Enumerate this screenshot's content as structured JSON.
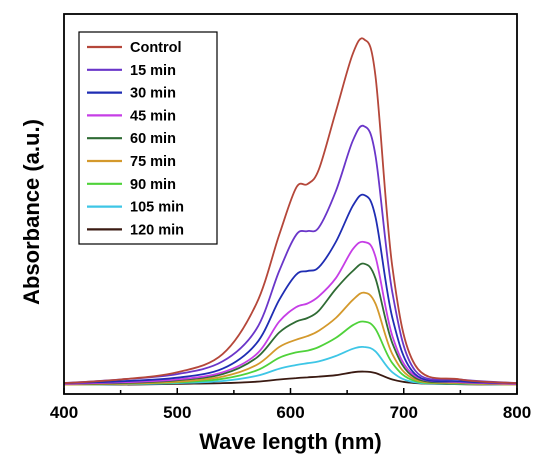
{
  "chart_data": {
    "type": "line",
    "xlabel": "Wave length (nm)",
    "ylabel": "Absorbance (a.u.)",
    "xlim": [
      400,
      800
    ],
    "ylim": [
      0,
      1.05
    ],
    "xticks": [
      400,
      500,
      600,
      700,
      800
    ],
    "show_y_tick_labels": false,
    "grid": false,
    "legend_position": "top-left",
    "x": [
      400,
      450,
      500,
      540,
      570,
      590,
      605,
      615,
      625,
      640,
      655,
      665,
      675,
      690,
      710,
      750,
      800
    ],
    "series": [
      {
        "name": "Control",
        "color": "#b5473a",
        "values": [
          0.03,
          0.04,
          0.06,
          0.11,
          0.25,
          0.44,
          0.57,
          0.58,
          0.62,
          0.78,
          0.94,
          0.98,
          0.88,
          0.35,
          0.08,
          0.04,
          0.03
        ]
      },
      {
        "name": "15 min",
        "color": "#6a36c9",
        "values": [
          0.03,
          0.04,
          0.055,
          0.09,
          0.18,
          0.34,
          0.44,
          0.45,
          0.46,
          0.56,
          0.7,
          0.74,
          0.66,
          0.28,
          0.065,
          0.04,
          0.03
        ]
      },
      {
        "name": "30 min",
        "color": "#1f2db3",
        "values": [
          0.03,
          0.035,
          0.045,
          0.07,
          0.14,
          0.26,
          0.33,
          0.34,
          0.35,
          0.42,
          0.52,
          0.55,
          0.49,
          0.21,
          0.055,
          0.035,
          0.03
        ]
      },
      {
        "name": "45 min",
        "color": "#c63ee6",
        "values": [
          0.028,
          0.032,
          0.04,
          0.06,
          0.11,
          0.2,
          0.24,
          0.25,
          0.27,
          0.32,
          0.4,
          0.42,
          0.38,
          0.16,
          0.05,
          0.033,
          0.028
        ]
      },
      {
        "name": "60 min",
        "color": "#2f6b34",
        "values": [
          0.028,
          0.03,
          0.038,
          0.055,
          0.1,
          0.17,
          0.2,
          0.21,
          0.23,
          0.29,
          0.34,
          0.36,
          0.32,
          0.14,
          0.045,
          0.032,
          0.028
        ]
      },
      {
        "name": "75 min",
        "color": "#d4992c",
        "values": [
          0.026,
          0.028,
          0.034,
          0.048,
          0.08,
          0.13,
          0.15,
          0.16,
          0.175,
          0.21,
          0.26,
          0.28,
          0.25,
          0.11,
          0.04,
          0.03,
          0.026
        ]
      },
      {
        "name": "90 min",
        "color": "#4fd23a",
        "values": [
          0.026,
          0.028,
          0.032,
          0.042,
          0.065,
          0.1,
          0.115,
          0.12,
          0.13,
          0.155,
          0.19,
          0.2,
          0.18,
          0.085,
          0.036,
          0.029,
          0.026
        ]
      },
      {
        "name": "105 min",
        "color": "#3ec6e6",
        "values": [
          0.026,
          0.027,
          0.03,
          0.036,
          0.05,
          0.07,
          0.08,
          0.085,
          0.09,
          0.105,
          0.125,
          0.13,
          0.118,
          0.06,
          0.032,
          0.028,
          0.026
        ]
      },
      {
        "name": "120 min",
        "color": "#3a1a12",
        "values": [
          0.026,
          0.026,
          0.028,
          0.03,
          0.034,
          0.04,
          0.044,
          0.046,
          0.048,
          0.052,
          0.06,
          0.062,
          0.058,
          0.04,
          0.03,
          0.027,
          0.026
        ]
      }
    ]
  }
}
